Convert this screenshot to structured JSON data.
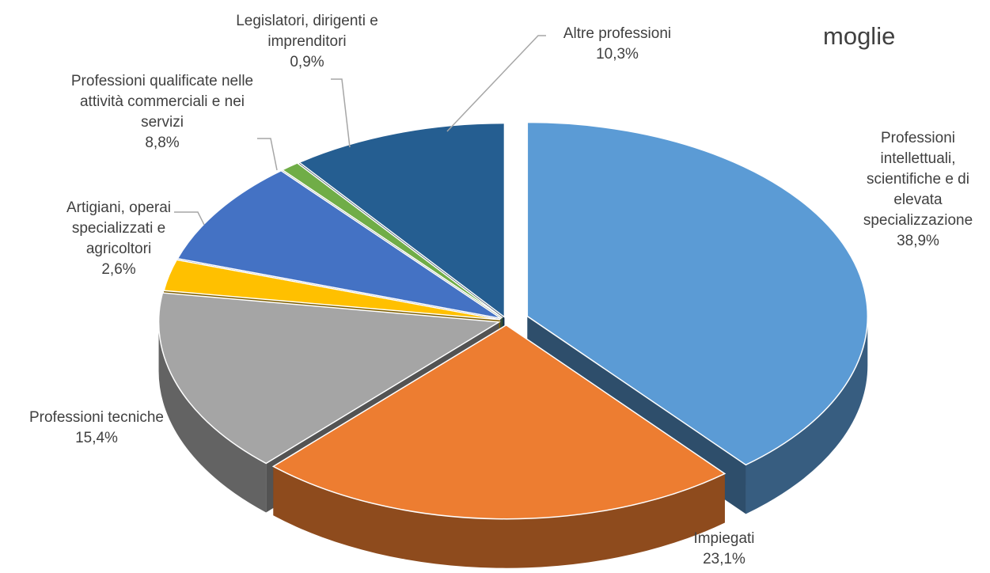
{
  "chart_data": {
    "type": "pie",
    "title": "moglie",
    "categories": [
      "Professioni intellettuali, scientifiche e di elevata specializzazione",
      "Impiegati",
      "Professioni tecniche",
      "Artigiani, operai specializzati e agricoltori",
      "Professioni qualificate nelle attività commerciali e nei servizi",
      "Legislatori, dirigenti e imprenditori",
      "Altre professioni"
    ],
    "values": [
      38.9,
      23.1,
      15.4,
      2.6,
      8.8,
      0.9,
      10.3
    ],
    "value_labels": [
      "38,9%",
      "23,1%",
      "15,4%",
      "2,6%",
      "8,8%",
      "0,9%",
      "10,3%"
    ],
    "colors": [
      "#5b9bd5",
      "#ed7d31",
      "#a5a5a5",
      "#ffc000",
      "#4472c4",
      "#70ad47",
      "#255e91"
    ]
  }
}
